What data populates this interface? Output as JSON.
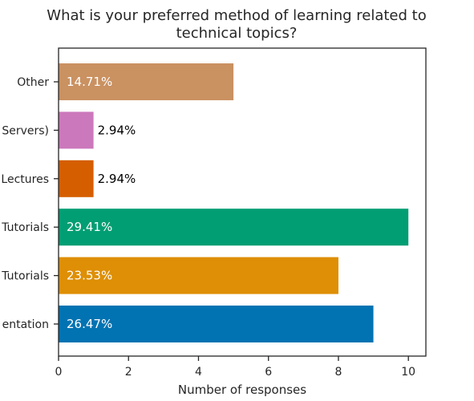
{
  "chart_data": {
    "type": "bar",
    "orientation": "horizontal",
    "title_lines": [
      "What is your preferred method of learning related to",
      "technical topics?"
    ],
    "xlabel": "Number of responses",
    "ylabel": "",
    "xlim": [
      0,
      10.5
    ],
    "xticks": [
      0,
      2,
      4,
      6,
      8,
      10
    ],
    "grid": false,
    "categories": [
      "Other",
      "Servers)",
      "Lectures",
      "Tutorials",
      "Tutorials",
      "entation"
    ],
    "values": [
      5,
      1,
      1,
      10,
      8,
      9
    ],
    "percent_labels": [
      "14.71%",
      "2.94%",
      "2.94%",
      "29.41%",
      "23.53%",
      "26.47%"
    ],
    "bar_colors": [
      "#ca9161",
      "#cc78bc",
      "#d55e00",
      "#029e73",
      "#de8f05",
      "#0173b2"
    ],
    "label_colors": [
      "#ffffff",
      "#000000",
      "#000000",
      "#ffffff",
      "#ffffff",
      "#ffffff"
    ]
  }
}
